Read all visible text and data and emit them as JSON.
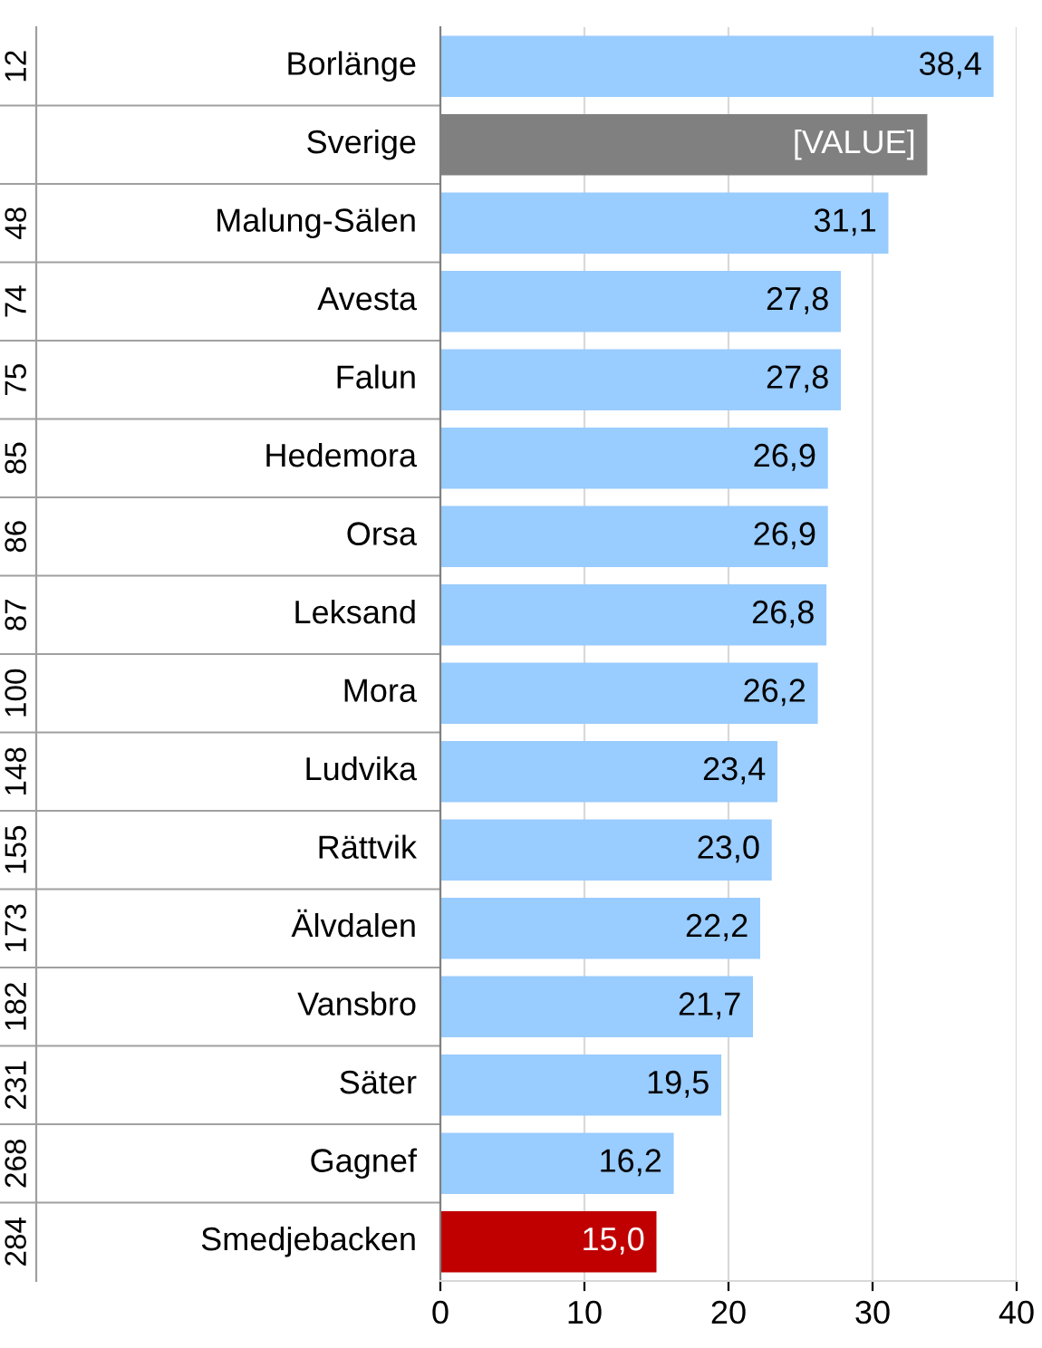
{
  "chart_data": {
    "type": "bar",
    "orientation": "horizontal",
    "categories": [
      "Borlänge",
      "Sverige",
      "Malung-Sälen",
      "Avesta",
      "Falun",
      "Hedemora",
      "Orsa",
      "Leksand",
      "Mora",
      "Ludvika",
      "Rättvik",
      "Älvdalen",
      "Vansbro",
      "Säter",
      "Gagnef",
      "Smedjebacken"
    ],
    "values": [
      38.4,
      33.8,
      31.1,
      27.8,
      27.8,
      26.9,
      26.9,
      26.8,
      26.2,
      23.4,
      23.0,
      22.2,
      21.7,
      19.5,
      16.2,
      15.0
    ],
    "colors": [
      "#99ccff",
      "#808080",
      "#99ccff",
      "#99ccff",
      "#99ccff",
      "#99ccff",
      "#99ccff",
      "#99ccff",
      "#99ccff",
      "#99ccff",
      "#99ccff",
      "#99ccff",
      "#99ccff",
      "#99ccff",
      "#99ccff",
      "#c00000"
    ],
    "value_labels": [
      "38,4",
      "[VALUE]",
      "31,1",
      "27,8",
      "27,8",
      "26,9",
      "26,9",
      "26,8",
      "26,2",
      "23,4",
      "23,0",
      "22,2",
      "21,7",
      "19,5",
      "16,2",
      "15,0"
    ],
    "xlim": [
      0,
      40
    ],
    "xticks": [
      0,
      10,
      20,
      30,
      40
    ],
    "grid": "x",
    "y2_categories": [
      "12",
      null,
      "48",
      "74",
      "75",
      "85",
      "86",
      "87",
      "100",
      "148",
      "155",
      "173",
      "182",
      "231",
      "268",
      "284"
    ]
  }
}
